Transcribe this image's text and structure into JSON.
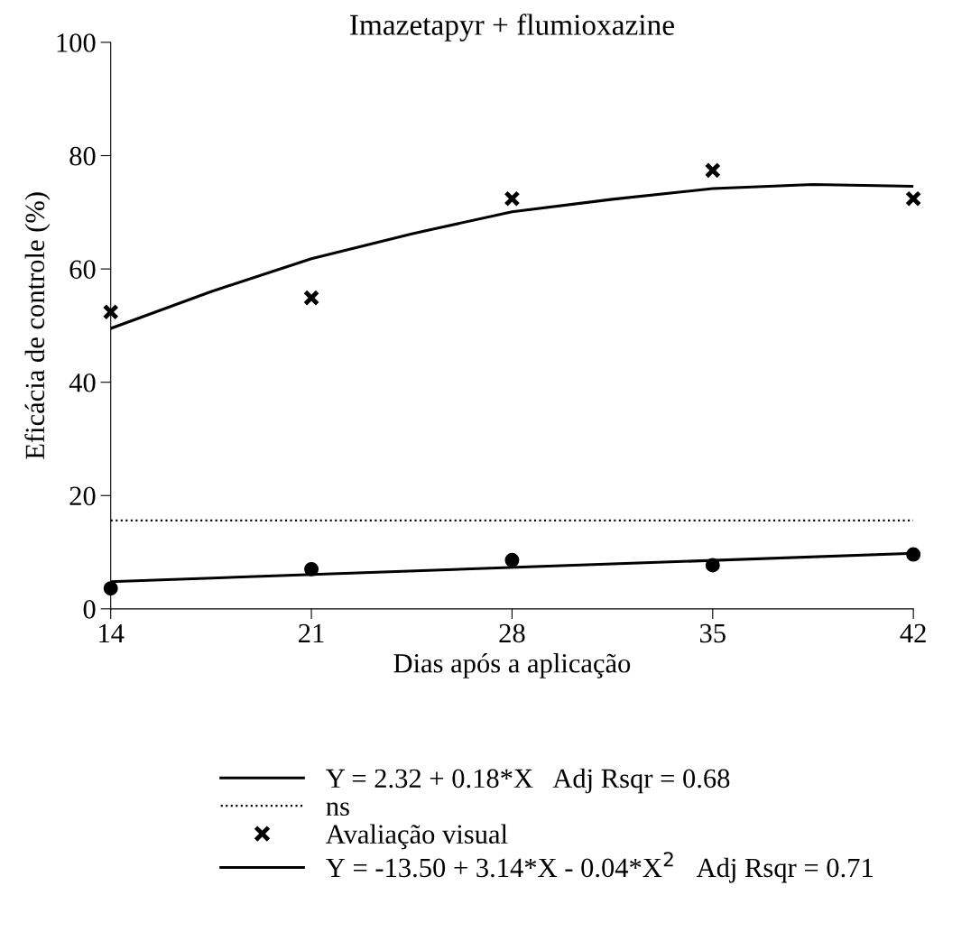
{
  "chart_data": {
    "type": "scatter",
    "title": "Imazetapyr + flumioxazine",
    "xlabel": "Dias após a aplicação",
    "ylabel": "Eficácia de controle (%)",
    "x": [
      14,
      21,
      28,
      35,
      42
    ],
    "xlim": [
      14,
      42
    ],
    "xticks": [
      14,
      21,
      28,
      35,
      42
    ],
    "ylim": [
      0,
      100
    ],
    "yticks": [
      0,
      20,
      40,
      60,
      80,
      100
    ],
    "grid": false,
    "legend": "bottom",
    "series": [
      {
        "color": "#000000",
        "marker": "circle",
        "values": [
          3.6,
          7.0,
          8.6,
          7.7,
          9.6
        ]
      },
      {
        "type": "line",
        "name": "Y = 2.32 + 0.18*X   Adj Rsqr = 0.68",
        "color": "#000000",
        "marker": "none",
        "line_style": "solid",
        "x": [
          14,
          42
        ],
        "values": [
          4.8,
          9.8
        ]
      },
      {
        "type": "line",
        "name": "ns",
        "color": "#000000",
        "marker": "none",
        "line_style": "dotted",
        "x": [
          14,
          42
        ],
        "values": [
          15.6,
          15.6
        ]
      },
      {
        "name": "Avaliação visual",
        "color": "#000000",
        "marker": "cross",
        "values": [
          52.4,
          54.9,
          72.4,
          77.4,
          72.4
        ]
      },
      {
        "type": "line",
        "name": "Y = -13.50 + 3.14*X - 0.04*X$^{2}$   Adj Rsqr = 0.71",
        "color": "#000000",
        "marker": "none",
        "line_style": "solid",
        "x": [
          14,
          17.5,
          21,
          24.5,
          28,
          31.5,
          35,
          38.5,
          42
        ],
        "values": [
          49.5,
          56.0,
          61.8,
          66.2,
          70.1,
          72.3,
          74.2,
          74.9,
          74.6
        ]
      }
    ]
  }
}
